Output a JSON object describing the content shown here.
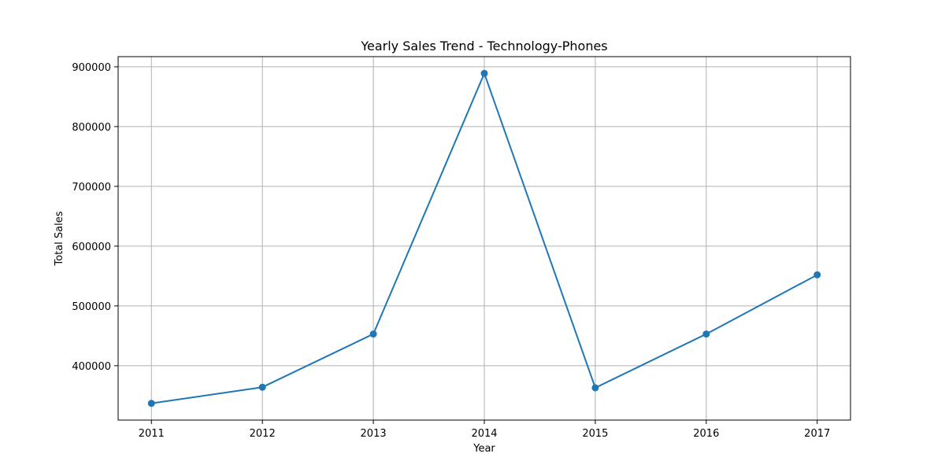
{
  "chart_data": {
    "type": "line",
    "title": "Yearly Sales Trend - Technology-Phones",
    "xlabel": "Year",
    "ylabel": "Total Sales",
    "x": [
      2011,
      2012,
      2013,
      2014,
      2015,
      2016,
      2017
    ],
    "series": [
      {
        "values": [
          337000,
          364000,
          453000,
          889000,
          363000,
          453000,
          552000
        ]
      }
    ],
    "xlim": [
      2010.7,
      2017.3
    ],
    "ylim": [
      309000,
      917000
    ],
    "yticks": [
      400000,
      500000,
      600000,
      700000,
      800000,
      900000
    ],
    "grid": true,
    "colors": {
      "line": "#1f77b4",
      "grid": "#b0b0b0"
    }
  }
}
